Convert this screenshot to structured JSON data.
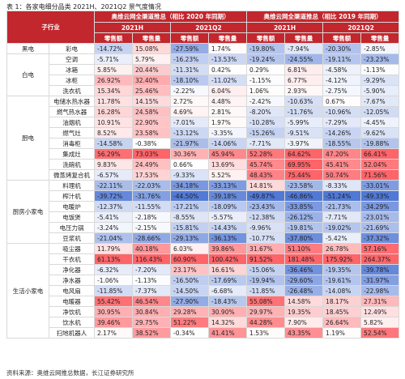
{
  "caption": "表 1：各家电细分品类 2021H、2021Q2 景气度情况",
  "source": "资料来源：奥维云网推总数据，长江证券研究所",
  "header": {
    "category": "子行业",
    "group1": "奥维云网全渠道推总（相比 2020 年同期）",
    "group2": "奥维云网全渠道推总（相比 2019 年同期）",
    "periods": [
      "2021H",
      "2021Q2",
      "2021H",
      "2021Q2"
    ],
    "metrics": [
      "零售额",
      "零售量",
      "零售额",
      "零售量",
      "零售额",
      "零售量",
      "零售额",
      "零售量"
    ]
  },
  "colors": {
    "header_bg": "#c1272d",
    "positive_max": "#e23b44",
    "negative_max": "#3f6fc2"
  },
  "groups": [
    {
      "category": "黑电",
      "rows": [
        {
          "name": "彩电",
          "values": [
            "-14.72%",
            "15.08%",
            "-27.59%",
            "1.74%",
            "-19.80%",
            "-7.94%",
            "-20.30%",
            "-2.85%"
          ]
        }
      ]
    },
    {
      "category": "白电",
      "rows": [
        {
          "name": "空调",
          "values": [
            "-5.71%",
            "5.79%",
            "-16.23%",
            "-13.53%",
            "-19.24%",
            "-24.55%",
            "-19.11%",
            "-23.23%"
          ]
        },
        {
          "name": "冰箱",
          "values": [
            "5.85%",
            "20.44%",
            "-11.31%",
            "0.42%",
            "0.29%",
            "6.81%",
            "-4.58%",
            "-1.13%"
          ]
        },
        {
          "name": "冰柜",
          "values": [
            "26.92%",
            "32.40%",
            "-18.10%",
            "-11.02%",
            "-1.15%",
            "6.77%",
            "-4.12%",
            "-9.29%"
          ]
        },
        {
          "name": "洗衣机",
          "values": [
            "15.34%",
            "25.46%",
            "-2.22%",
            "6.04%",
            "1.06%",
            "2.93%",
            "-2.75%",
            "-5.90%"
          ]
        }
      ]
    },
    {
      "category": "厨电",
      "rows": [
        {
          "name": "电储水热水器",
          "values": [
            "11.78%",
            "14.15%",
            "2.72%",
            "4.48%",
            "-2.42%",
            "-10.63%",
            "0.67%",
            "-7.67%"
          ]
        },
        {
          "name": "燃气热水器",
          "values": [
            "16.28%",
            "24.58%",
            "4.69%",
            "2.81%",
            "-8.20%",
            "-11.76%",
            "-10.96%",
            "-12.05%"
          ]
        },
        {
          "name": "油烟机",
          "values": [
            "10.91%",
            "22.90%",
            "-7.01%",
            "1.97%",
            "-10.28%",
            "-5.99%",
            "-7.29%",
            "-4.45%"
          ]
        },
        {
          "name": "燃气灶",
          "values": [
            "8.52%",
            "23.58%",
            "-13.12%",
            "-3.35%",
            "-15.26%",
            "-9.51%",
            "-14.26%",
            "-9.62%"
          ]
        },
        {
          "name": "消毒柜",
          "values": [
            "-14.58%",
            "-0.38%",
            "-21.97%",
            "-14.06%",
            "-7.71%",
            "-3.97%",
            "-18.55%",
            "-19.88%"
          ]
        },
        {
          "name": "集成灶",
          "values": [
            "56.29%",
            "73.03%",
            "30.36%",
            "45.94%",
            "52.28%",
            "64.62%",
            "47.20%",
            "66.41%"
          ]
        },
        {
          "name": "洗碗机",
          "values": [
            "9.83%",
            "24.49%",
            "0.66%",
            "13.69%",
            "45.74%",
            "69.95%",
            "45.41%",
            "52.04%"
          ]
        },
        {
          "name": "微蒸烤复合机",
          "values": [
            "-6.57%",
            "17.53%",
            "-9.33%",
            "5.52%",
            "48.43%",
            "75.44%",
            "50.74%",
            "71.56%"
          ]
        }
      ]
    },
    {
      "category": "厨房小家电",
      "rows": [
        {
          "name": "料理机",
          "values": [
            "-22.11%",
            "-22.03%",
            "-34.18%",
            "-33.13%",
            "14.81%",
            "-23.58%",
            "-8.33%",
            "-33.01%"
          ]
        },
        {
          "name": "榨汁机",
          "values": [
            "-39.72%",
            "-31.76%",
            "-44.50%",
            "-39.18%",
            "-49.87%",
            "-46.86%",
            "-51.24%",
            "-49.33%"
          ]
        },
        {
          "name": "电暖炉",
          "values": [
            "-12.37%",
            "-11.55%",
            "-17.21%",
            "-18.09%",
            "-23.43%",
            "-33.85%",
            "-21.73%",
            "-34.29%"
          ]
        },
        {
          "name": "电饭煲",
          "values": [
            "-5.41%",
            "-2.18%",
            "-8.55%",
            "-5.57%",
            "-12.38%",
            "-26.12%",
            "-7.71%",
            "-23.01%"
          ]
        },
        {
          "name": "电压力锅",
          "values": [
            "-3.24%",
            "-2.15%",
            "-15.81%",
            "-14.43%",
            "-9.96%",
            "-19.81%",
            "-19.02%",
            "-21.69%"
          ]
        },
        {
          "name": "豆浆机",
          "values": [
            "-21.04%",
            "-28.66%",
            "-29.13%",
            "-36.13%",
            "-10.77%",
            "-37.80%",
            "-5.42%",
            "-37.32%"
          ]
        }
      ]
    },
    {
      "category": "生活小家电",
      "rows": [
        {
          "name": "吸尘器",
          "values": [
            "11.79%",
            "40.18%",
            "6.03%",
            "39.86%",
            "31.67%",
            "51.10%",
            "26.78%",
            "57.16%"
          ]
        },
        {
          "name": "干衣机",
          "values": [
            "61.13%",
            "116.43%",
            "60.90%",
            "100.42%",
            "91.52%",
            "181.48%",
            "175.92%",
            "264.37%"
          ]
        },
        {
          "name": "净化器",
          "values": [
            "-6.32%",
            "-7.20%",
            "23.17%",
            "16.61%",
            "-15.06%",
            "-36.46%",
            "-19.35%",
            "-39.78%"
          ]
        },
        {
          "name": "净水器",
          "values": [
            "-1.06%",
            "-1.13%",
            "-16.50%",
            "-17.69%",
            "-19.94%",
            "-29.60%",
            "-19.61%",
            "-31.97%"
          ]
        },
        {
          "name": "电风扇",
          "values": [
            "-11.85%",
            "-7.37%",
            "-14.50%",
            "-6.68%",
            "-11.85%",
            "-26.48%",
            "-14.08%",
            "-22.98%"
          ]
        },
        {
          "name": "电暖器",
          "values": [
            "55.42%",
            "46.54%",
            "-27.90%",
            "-18.43%",
            "55.08%",
            "14.58%",
            "18.17%",
            "27.31%"
          ]
        },
        {
          "name": "净饮机",
          "values": [
            "30.95%",
            "30.84%",
            "29.28%",
            "30.90%",
            "29.97%",
            "19.35%",
            "18.45%",
            "12.49%"
          ]
        },
        {
          "name": "饮水机",
          "values": [
            "39.46%",
            "29.75%",
            "51.22%",
            "14.32%",
            "44.28%",
            "7.90%",
            "26.64%",
            "5.82%"
          ]
        },
        {
          "name": "扫地机器人",
          "values": [
            "2.17%",
            "38.52%",
            "-0.34%",
            "41.41%",
            "1.53%",
            "43.35%",
            "1.19%",
            "52.54%"
          ]
        }
      ]
    }
  ]
}
